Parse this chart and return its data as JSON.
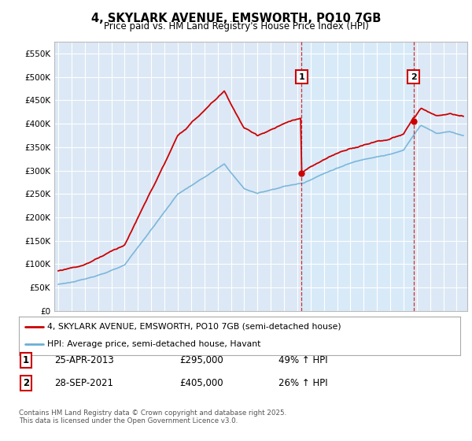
{
  "title": "4, SKYLARK AVENUE, EMSWORTH, PO10 7GB",
  "subtitle": "Price paid vs. HM Land Registry's House Price Index (HPI)",
  "ylim": [
    0,
    575000
  ],
  "xlim_start": 1994.7,
  "xlim_end": 2025.8,
  "purchase1_date": 2013.32,
  "purchase1_price": 295000,
  "purchase1_label": "1",
  "purchase2_date": 2021.75,
  "purchase2_price": 405000,
  "purchase2_label": "2",
  "legend_line1": "4, SKYLARK AVENUE, EMSWORTH, PO10 7GB (semi-detached house)",
  "legend_line2": "HPI: Average price, semi-detached house, Havant",
  "table_row1": [
    "1",
    "25-APR-2013",
    "£295,000",
    "49% ↑ HPI"
  ],
  "table_row2": [
    "2",
    "28-SEP-2021",
    "£405,000",
    "26% ↑ HPI"
  ],
  "footer": "Contains HM Land Registry data © Crown copyright and database right 2025.\nThis data is licensed under the Open Government Licence v3.0.",
  "property_color": "#cc0000",
  "hpi_color": "#6baed6",
  "vline_color": "#cc0000",
  "bg_color": "#dce8f5",
  "shade_color": "#d0e4f5",
  "grid_color": "#ffffff"
}
